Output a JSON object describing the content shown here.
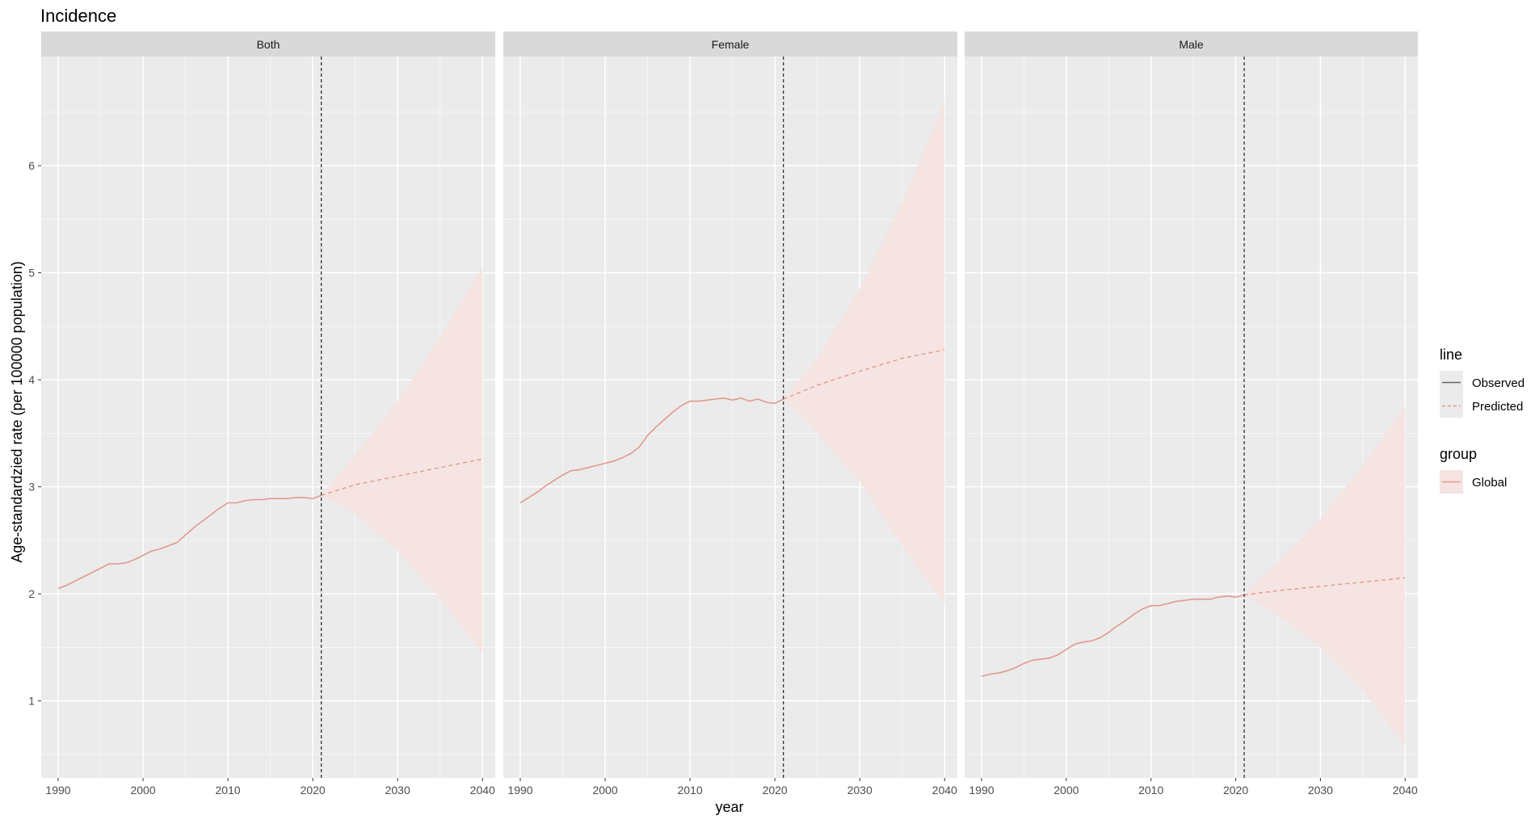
{
  "chart_data": {
    "type": "line",
    "title": "Incidence",
    "xlabel": "year",
    "ylabel": "Age-standardzied rate (per 100000 population)",
    "xlim": [
      1988,
      2041.5
    ],
    "ylim": [
      0.28,
      7.02
    ],
    "x_ticks": [
      1990,
      2000,
      2010,
      2020,
      2030,
      2040
    ],
    "y_ticks": [
      1,
      2,
      3,
      4,
      5,
      6
    ],
    "grid": true,
    "vline_x": 2021,
    "facets": [
      {
        "label": "Both",
        "observed": {
          "x": [
            1990,
            1991,
            1992,
            1993,
            1994,
            1995,
            1996,
            1997,
            1998,
            1999,
            2000,
            2001,
            2002,
            2003,
            2004,
            2005,
            2006,
            2007,
            2008,
            2009,
            2010,
            2011,
            2012,
            2013,
            2014,
            2015,
            2016,
            2017,
            2018,
            2019,
            2020,
            2021
          ],
          "y": [
            2.05,
            2.08,
            2.12,
            2.16,
            2.2,
            2.24,
            2.28,
            2.28,
            2.29,
            2.32,
            2.36,
            2.4,
            2.42,
            2.45,
            2.48,
            2.55,
            2.62,
            2.68,
            2.74,
            2.8,
            2.85,
            2.85,
            2.87,
            2.88,
            2.88,
            2.89,
            2.89,
            2.89,
            2.9,
            2.9,
            2.89,
            2.92
          ]
        },
        "predicted": {
          "x": [
            2021,
            2025,
            2030,
            2035,
            2040
          ],
          "y": [
            2.92,
            3.02,
            3.1,
            3.18,
            3.26
          ]
        },
        "band": {
          "x": [
            2021,
            2025,
            2030,
            2035,
            2040
          ],
          "lower": [
            2.92,
            2.75,
            2.4,
            1.95,
            1.45
          ],
          "upper": [
            2.92,
            3.3,
            3.8,
            4.4,
            5.05
          ]
        }
      },
      {
        "label": "Female",
        "observed": {
          "x": [
            1990,
            1991,
            1992,
            1993,
            1994,
            1995,
            1996,
            1997,
            1998,
            1999,
            2000,
            2001,
            2002,
            2003,
            2004,
            2005,
            2006,
            2007,
            2008,
            2009,
            2010,
            2011,
            2012,
            2013,
            2014,
            2015,
            2016,
            2017,
            2018,
            2019,
            2020,
            2021
          ],
          "y": [
            2.85,
            2.9,
            2.95,
            3.01,
            3.06,
            3.11,
            3.15,
            3.16,
            3.18,
            3.2,
            3.22,
            3.24,
            3.27,
            3.31,
            3.37,
            3.48,
            3.56,
            3.63,
            3.7,
            3.76,
            3.8,
            3.8,
            3.81,
            3.82,
            3.83,
            3.81,
            3.83,
            3.8,
            3.82,
            3.79,
            3.78,
            3.82
          ]
        },
        "predicted": {
          "x": [
            2021,
            2025,
            2030,
            2035,
            2040
          ],
          "y": [
            3.82,
            3.95,
            4.08,
            4.2,
            4.28
          ]
        },
        "band": {
          "x": [
            2021,
            2025,
            2030,
            2035,
            2040
          ],
          "lower": [
            3.82,
            3.5,
            3.05,
            2.45,
            1.9
          ],
          "upper": [
            3.82,
            4.2,
            4.85,
            5.65,
            6.6
          ]
        }
      },
      {
        "label": "Male",
        "observed": {
          "x": [
            1990,
            1991,
            1992,
            1993,
            1994,
            1995,
            1996,
            1997,
            1998,
            1999,
            2000,
            2001,
            2002,
            2003,
            2004,
            2005,
            2006,
            2007,
            2008,
            2009,
            2010,
            2011,
            2012,
            2013,
            2014,
            2015,
            2016,
            2017,
            2018,
            2019,
            2020,
            2021
          ],
          "y": [
            1.23,
            1.25,
            1.26,
            1.28,
            1.31,
            1.35,
            1.38,
            1.39,
            1.4,
            1.43,
            1.48,
            1.53,
            1.55,
            1.56,
            1.59,
            1.64,
            1.7,
            1.75,
            1.81,
            1.86,
            1.89,
            1.89,
            1.91,
            1.93,
            1.94,
            1.95,
            1.95,
            1.95,
            1.97,
            1.98,
            1.97,
            1.99
          ]
        },
        "predicted": {
          "x": [
            2021,
            2025,
            2030,
            2035,
            2040
          ],
          "y": [
            1.99,
            2.03,
            2.07,
            2.11,
            2.15
          ]
        },
        "band": {
          "x": [
            2021,
            2025,
            2030,
            2035,
            2040
          ],
          "lower": [
            1.99,
            1.8,
            1.5,
            1.1,
            0.58
          ],
          "upper": [
            1.99,
            2.3,
            2.7,
            3.2,
            3.75
          ]
        }
      }
    ],
    "legends": [
      {
        "title": "line",
        "items": [
          {
            "label": "Observed",
            "style": "solid"
          },
          {
            "label": "Predicted",
            "style": "dashed"
          }
        ]
      },
      {
        "title": "group",
        "items": [
          {
            "label": "Global",
            "style": "solid"
          }
        ]
      }
    ],
    "legend_position": "right",
    "colors": {
      "line": "#E09A8E",
      "band": "#F6E4E2",
      "panel": "#EBEBEB",
      "strip": "#D9D9D9",
      "grid": "#FFFFFF",
      "vline": "#333333",
      "legend_key_line": "#666666"
    }
  }
}
